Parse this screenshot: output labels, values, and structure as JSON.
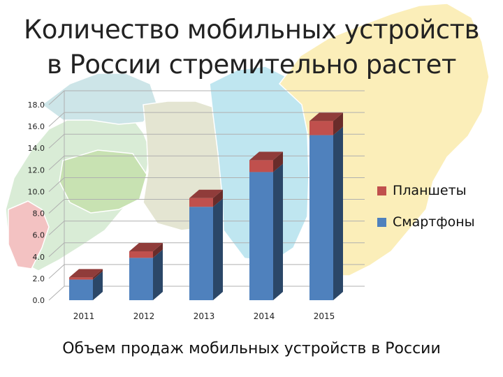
{
  "slide": {
    "title": "Количество мобильных устройств в России стремительно растет",
    "caption": "Объем продаж мобильных устройств в России"
  },
  "colors": {
    "smartphones": "#4f81bd",
    "tablets": "#c0504d"
  },
  "chart_data": {
    "type": "bar",
    "stacked": true,
    "three_d": true,
    "categories": [
      "2011",
      "2012",
      "2013",
      "2014",
      "2015"
    ],
    "series": [
      {
        "name": "Смартфоны",
        "values": [
          1.9,
          3.9,
          8.6,
          11.8,
          15.2
        ]
      },
      {
        "name": "Планшеты",
        "values": [
          0.2,
          0.6,
          0.8,
          1.1,
          1.3
        ]
      }
    ],
    "ylim": [
      0,
      18
    ],
    "yticks": [
      "0.0",
      "2.0",
      "4.0",
      "6.0",
      "8.0",
      "10.0",
      "12.0",
      "14.0",
      "16.0",
      "18.0"
    ],
    "grid": true,
    "legend": "right",
    "xlabel": "",
    "ylabel": ""
  }
}
